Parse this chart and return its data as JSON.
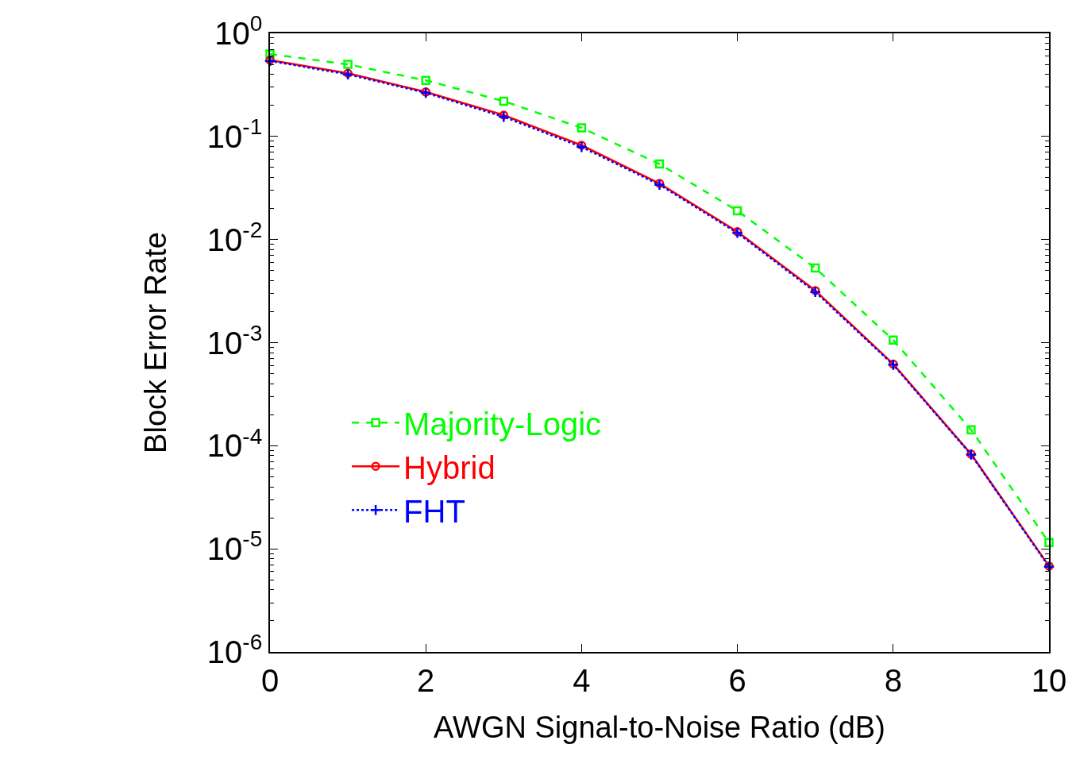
{
  "chart_data": {
    "type": "line",
    "xlabel": "AWGN Signal-to-Noise Ratio (dB)",
    "ylabel": "Block Error Rate",
    "x": [
      0,
      1,
      2,
      3,
      4,
      5,
      6,
      7,
      8,
      9,
      10
    ],
    "series": [
      {
        "name": "Majority-Logic",
        "color": "#00ff00",
        "marker": "square",
        "line_style": "dashed",
        "values": [
          0.63,
          0.5,
          0.35,
          0.22,
          0.121,
          0.054,
          0.019,
          0.0053,
          0.00106,
          0.000143,
          1.15e-05
        ]
      },
      {
        "name": "Hybrid",
        "color": "#ff0000",
        "marker": "circle",
        "line_style": "solid",
        "values": [
          0.55,
          0.41,
          0.27,
          0.161,
          0.082,
          0.035,
          0.0119,
          0.0032,
          0.00062,
          8.3e-05,
          6.8e-06
        ]
      },
      {
        "name": "FHT",
        "color": "#0000ff",
        "marker": "cross",
        "line_style": "dotted",
        "values": [
          0.54,
          0.4,
          0.265,
          0.155,
          0.079,
          0.034,
          0.0116,
          0.0031,
          0.00061,
          8.2e-05,
          6.7e-06
        ]
      }
    ],
    "xlim": [
      0,
      10
    ],
    "xticks": [
      0,
      2,
      4,
      6,
      8,
      10
    ],
    "ylim": [
      1e-06,
      1
    ],
    "log": true,
    "yticks": [
      {
        "value": 1,
        "label": "10$^{0}$"
      },
      {
        "value": 0.1,
        "label": "10$^{-1}$"
      },
      {
        "value": 0.01,
        "label": "10$^{-2}$"
      },
      {
        "value": 0.001,
        "label": "10$^{-3}$"
      },
      {
        "value": 0.0001,
        "label": "10$^{-4}$"
      },
      {
        "value": 1e-05,
        "label": "10$^{-5}$"
      },
      {
        "value": 1e-06,
        "label": "10$^{-6}$"
      }
    ],
    "grid": false,
    "legend": "center left"
  }
}
